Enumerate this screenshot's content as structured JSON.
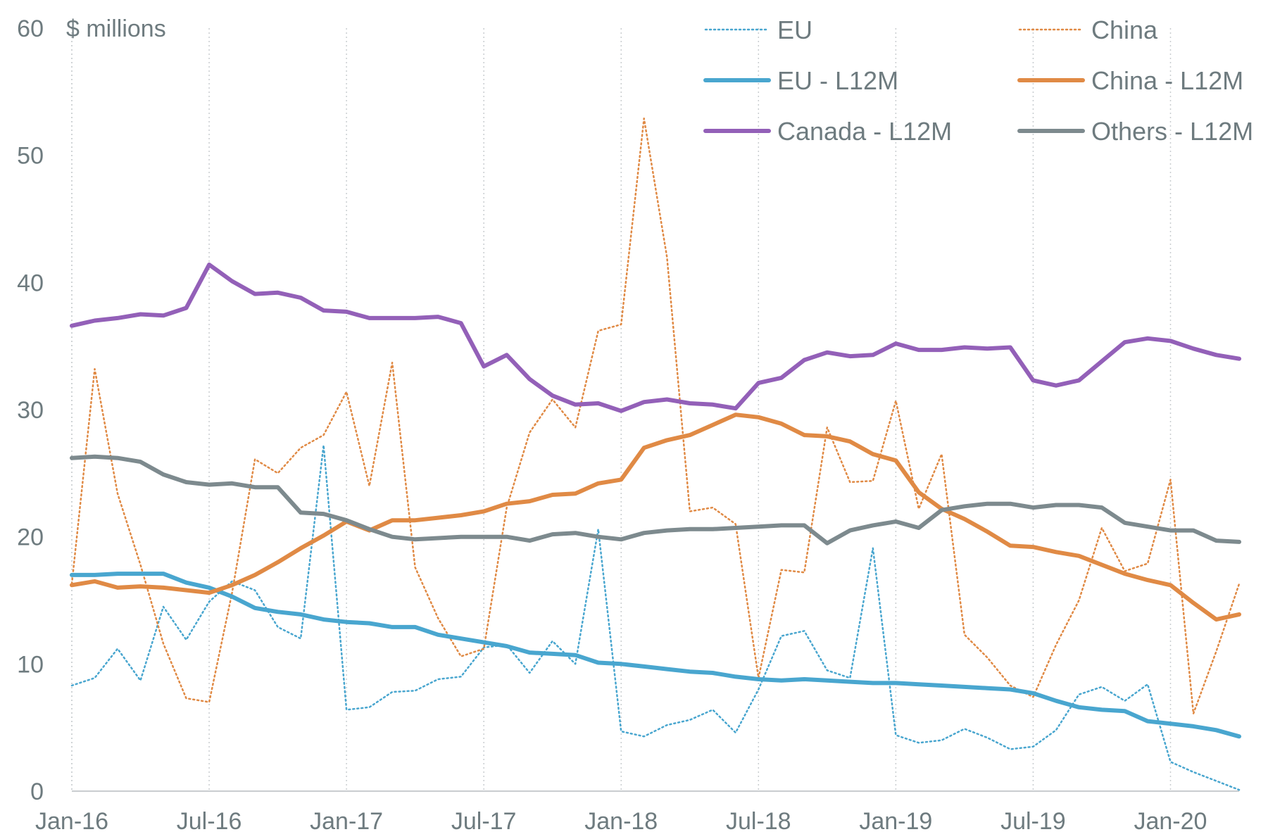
{
  "chart_data": {
    "type": "line",
    "ylabel": "$ millions",
    "ylim": [
      0,
      60
    ],
    "yticks": [
      "0",
      "10",
      "20",
      "30",
      "40",
      "50",
      "60"
    ],
    "x_tick_labels": [
      "Jan-16",
      "Jul-16",
      "Jan-17",
      "Jul-17",
      "Jan-18",
      "Jul-18",
      "Jan-19",
      "Jul-19",
      "Jan-20"
    ],
    "x": [
      "Jan-16",
      "Feb-16",
      "Mar-16",
      "Apr-16",
      "May-16",
      "Jun-16",
      "Jul-16",
      "Aug-16",
      "Sep-16",
      "Oct-16",
      "Nov-16",
      "Dec-16",
      "Jan-17",
      "Feb-17",
      "Mar-17",
      "Apr-17",
      "May-17",
      "Jun-17",
      "Jul-17",
      "Aug-17",
      "Sep-17",
      "Oct-17",
      "Nov-17",
      "Dec-17",
      "Jan-18",
      "Feb-18",
      "Mar-18",
      "Apr-18",
      "May-18",
      "Jun-18",
      "Jul-18",
      "Aug-18",
      "Sep-18",
      "Oct-18",
      "Nov-18",
      "Dec-18",
      "Jan-19",
      "Feb-19",
      "Mar-19",
      "Apr-19",
      "May-19",
      "Jun-19",
      "Jul-19",
      "Aug-19",
      "Sep-19",
      "Oct-19",
      "Nov-19",
      "Dec-19",
      "Jan-20",
      "Feb-20",
      "Mar-20",
      "Apr-20"
    ],
    "grid": "vertical dotted",
    "legend_position": "top-right",
    "series": [
      {
        "name": "EU",
        "style": "dotted",
        "color": "#49a6cf",
        "values": [
          8.3,
          8.9,
          11.2,
          8.7,
          14.5,
          11.9,
          14.9,
          16.5,
          15.8,
          12.9,
          12.0,
          27.2,
          6.4,
          6.6,
          7.8,
          7.9,
          8.8,
          9.0,
          11.3,
          11.5,
          9.3,
          11.8,
          10.0,
          20.6,
          4.7,
          4.3,
          5.2,
          5.6,
          6.4,
          4.6,
          8.0,
          12.2,
          12.6,
          9.5,
          8.9,
          19.1,
          4.4,
          3.8,
          4.0,
          4.9,
          4.2,
          3.3,
          3.5,
          4.8,
          7.6,
          8.2,
          7.1,
          8.4,
          2.3,
          1.5,
          0.8,
          0.1
        ]
      },
      {
        "name": "China",
        "style": "dotted",
        "color": "#e08a45",
        "values": [
          16.3,
          33.2,
          23.4,
          17.8,
          11.6,
          7.3,
          7.0,
          15.6,
          26.1,
          25.0,
          27.0,
          28.0,
          31.4,
          24.0,
          33.7,
          17.6,
          13.6,
          10.6,
          11.2,
          22.3,
          28.2,
          30.8,
          28.6,
          36.2,
          36.7,
          52.9,
          42.0,
          22.0,
          22.3,
          21.0,
          8.9,
          17.4,
          17.2,
          28.6,
          24.3,
          24.4,
          30.7,
          22.2,
          26.5,
          12.3,
          10.5,
          8.3,
          7.4,
          11.5,
          15.0,
          20.7,
          17.3,
          17.9,
          24.5,
          6.1,
          11.0,
          16.3
        ]
      },
      {
        "name": "EU - L12M",
        "style": "solid",
        "color": "#49a6cf",
        "values": [
          17.0,
          17.0,
          17.1,
          17.1,
          17.1,
          16.4,
          16.0,
          15.3,
          14.4,
          14.1,
          13.9,
          13.5,
          13.3,
          13.2,
          12.9,
          12.9,
          12.3,
          12.0,
          11.7,
          11.4,
          10.9,
          10.8,
          10.7,
          10.1,
          10.0,
          9.8,
          9.6,
          9.4,
          9.3,
          9.0,
          8.8,
          8.7,
          8.8,
          8.7,
          8.6,
          8.5,
          8.5,
          8.4,
          8.3,
          8.2,
          8.1,
          8.0,
          7.7,
          7.1,
          6.6,
          6.4,
          6.3,
          5.5,
          5.3,
          5.1,
          4.8,
          4.3
        ]
      },
      {
        "name": "China - L12M",
        "style": "solid",
        "color": "#e08a45",
        "values": [
          16.2,
          16.5,
          16.0,
          16.1,
          16.0,
          15.8,
          15.6,
          16.2,
          17.0,
          18.0,
          19.1,
          20.1,
          21.2,
          20.5,
          21.3,
          21.3,
          21.5,
          21.7,
          22.0,
          22.6,
          22.8,
          23.3,
          23.4,
          24.2,
          24.5,
          27.0,
          27.6,
          28.0,
          28.8,
          29.6,
          29.4,
          28.9,
          28.0,
          27.9,
          27.5,
          26.5,
          26.0,
          23.5,
          22.2,
          21.4,
          20.4,
          19.3,
          19.2,
          18.8,
          18.5,
          17.8,
          17.1,
          16.6,
          16.2,
          14.8,
          13.5,
          13.9
        ]
      },
      {
        "name": "Canada - L12M",
        "style": "solid",
        "color": "#9360b8",
        "values": [
          36.6,
          37.0,
          37.2,
          37.5,
          37.4,
          38.0,
          41.4,
          40.1,
          39.1,
          39.2,
          38.8,
          37.8,
          37.7,
          37.2,
          37.2,
          37.2,
          37.3,
          36.8,
          33.4,
          34.3,
          32.4,
          31.1,
          30.4,
          30.5,
          29.9,
          30.6,
          30.8,
          30.5,
          30.4,
          30.1,
          32.1,
          32.5,
          33.9,
          34.5,
          34.2,
          34.3,
          35.2,
          34.7,
          34.7,
          34.9,
          34.8,
          34.9,
          32.3,
          31.9,
          32.3,
          33.8,
          35.3,
          35.6,
          35.4,
          34.8,
          34.3,
          34.0
        ]
      },
      {
        "name": "Others - L12M",
        "style": "solid",
        "color": "#7d8a8e",
        "values": [
          26.2,
          26.3,
          26.2,
          25.9,
          24.9,
          24.3,
          24.1,
          24.2,
          23.9,
          23.9,
          21.9,
          21.8,
          21.3,
          20.6,
          20.0,
          19.8,
          19.9,
          20.0,
          20.0,
          20.0,
          19.7,
          20.2,
          20.3,
          20.0,
          19.8,
          20.3,
          20.5,
          20.6,
          20.6,
          20.7,
          20.8,
          20.9,
          20.9,
          19.5,
          20.5,
          20.9,
          21.2,
          20.7,
          22.1,
          22.4,
          22.6,
          22.6,
          22.3,
          22.5,
          22.5,
          22.3,
          21.1,
          20.8,
          20.5,
          20.5,
          19.7,
          19.6
        ]
      }
    ]
  }
}
